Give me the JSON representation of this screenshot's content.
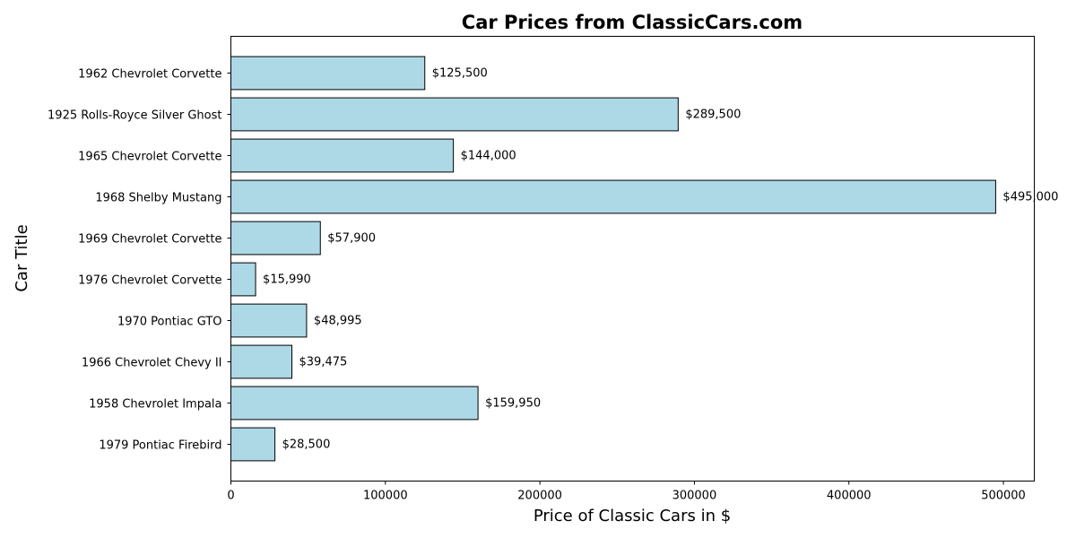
{
  "chart_data": {
    "type": "bar",
    "orientation": "horizontal",
    "title": "Car Prices from ClassicCars.com",
    "xlabel": "Price of Classic Cars in $",
    "ylabel": "Car Title",
    "categories": [
      "1962 Chevrolet Corvette",
      "1925 Rolls-Royce Silver Ghost",
      "1965 Chevrolet Corvette",
      "1968 Shelby Mustang",
      "1969 Chevrolet Corvette",
      "1976 Chevrolet Corvette",
      "1970 Pontiac GTO",
      "1966 Chevrolet Chevy II",
      "1958 Chevrolet Impala",
      "1979 Pontiac Firebird"
    ],
    "values": [
      125500,
      289500,
      144000,
      495000,
      57900,
      15990,
      48995,
      39475,
      159950,
      28500
    ],
    "data_labels": [
      "$125,500",
      "$289,500",
      "$144,000",
      "$495,000",
      "$57,900",
      "$15,990",
      "$48,995",
      "$39,475",
      "$159,950",
      "$28,500"
    ],
    "xlim": [
      0,
      520000
    ],
    "x_ticks": [
      0,
      100000,
      200000,
      300000,
      400000,
      500000
    ],
    "x_tick_labels": [
      "0",
      "100000",
      "200000",
      "300000",
      "400000",
      "500000"
    ],
    "grid": false,
    "bar_color": "#add8e6",
    "bar_edge_color": "#000000"
  }
}
